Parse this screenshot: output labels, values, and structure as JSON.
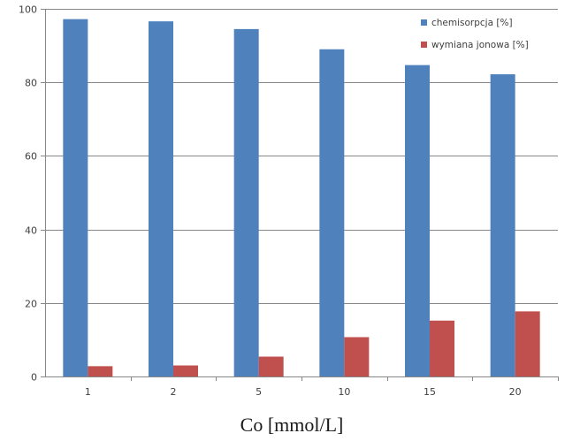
{
  "chart_data": {
    "type": "bar",
    "title": "",
    "xlabel": "Co [mmol/L]",
    "ylabel": "",
    "ylim": [
      0,
      100
    ],
    "yticks": [
      0,
      20,
      40,
      60,
      80,
      100
    ],
    "grid": true,
    "legend_position": "top-right",
    "categories": [
      "1",
      "2",
      "5",
      "10",
      "15",
      "20"
    ],
    "series": [
      {
        "name": "chemisorpcja [%]",
        "color": "#4f81bd",
        "values": [
          97.2,
          96.6,
          94.5,
          89.0,
          84.7,
          82.2
        ]
      },
      {
        "name": "wymiana jonowa [%]",
        "color": "#c0504d",
        "values": [
          2.8,
          3.0,
          5.4,
          10.7,
          15.2,
          17.7
        ]
      }
    ]
  }
}
